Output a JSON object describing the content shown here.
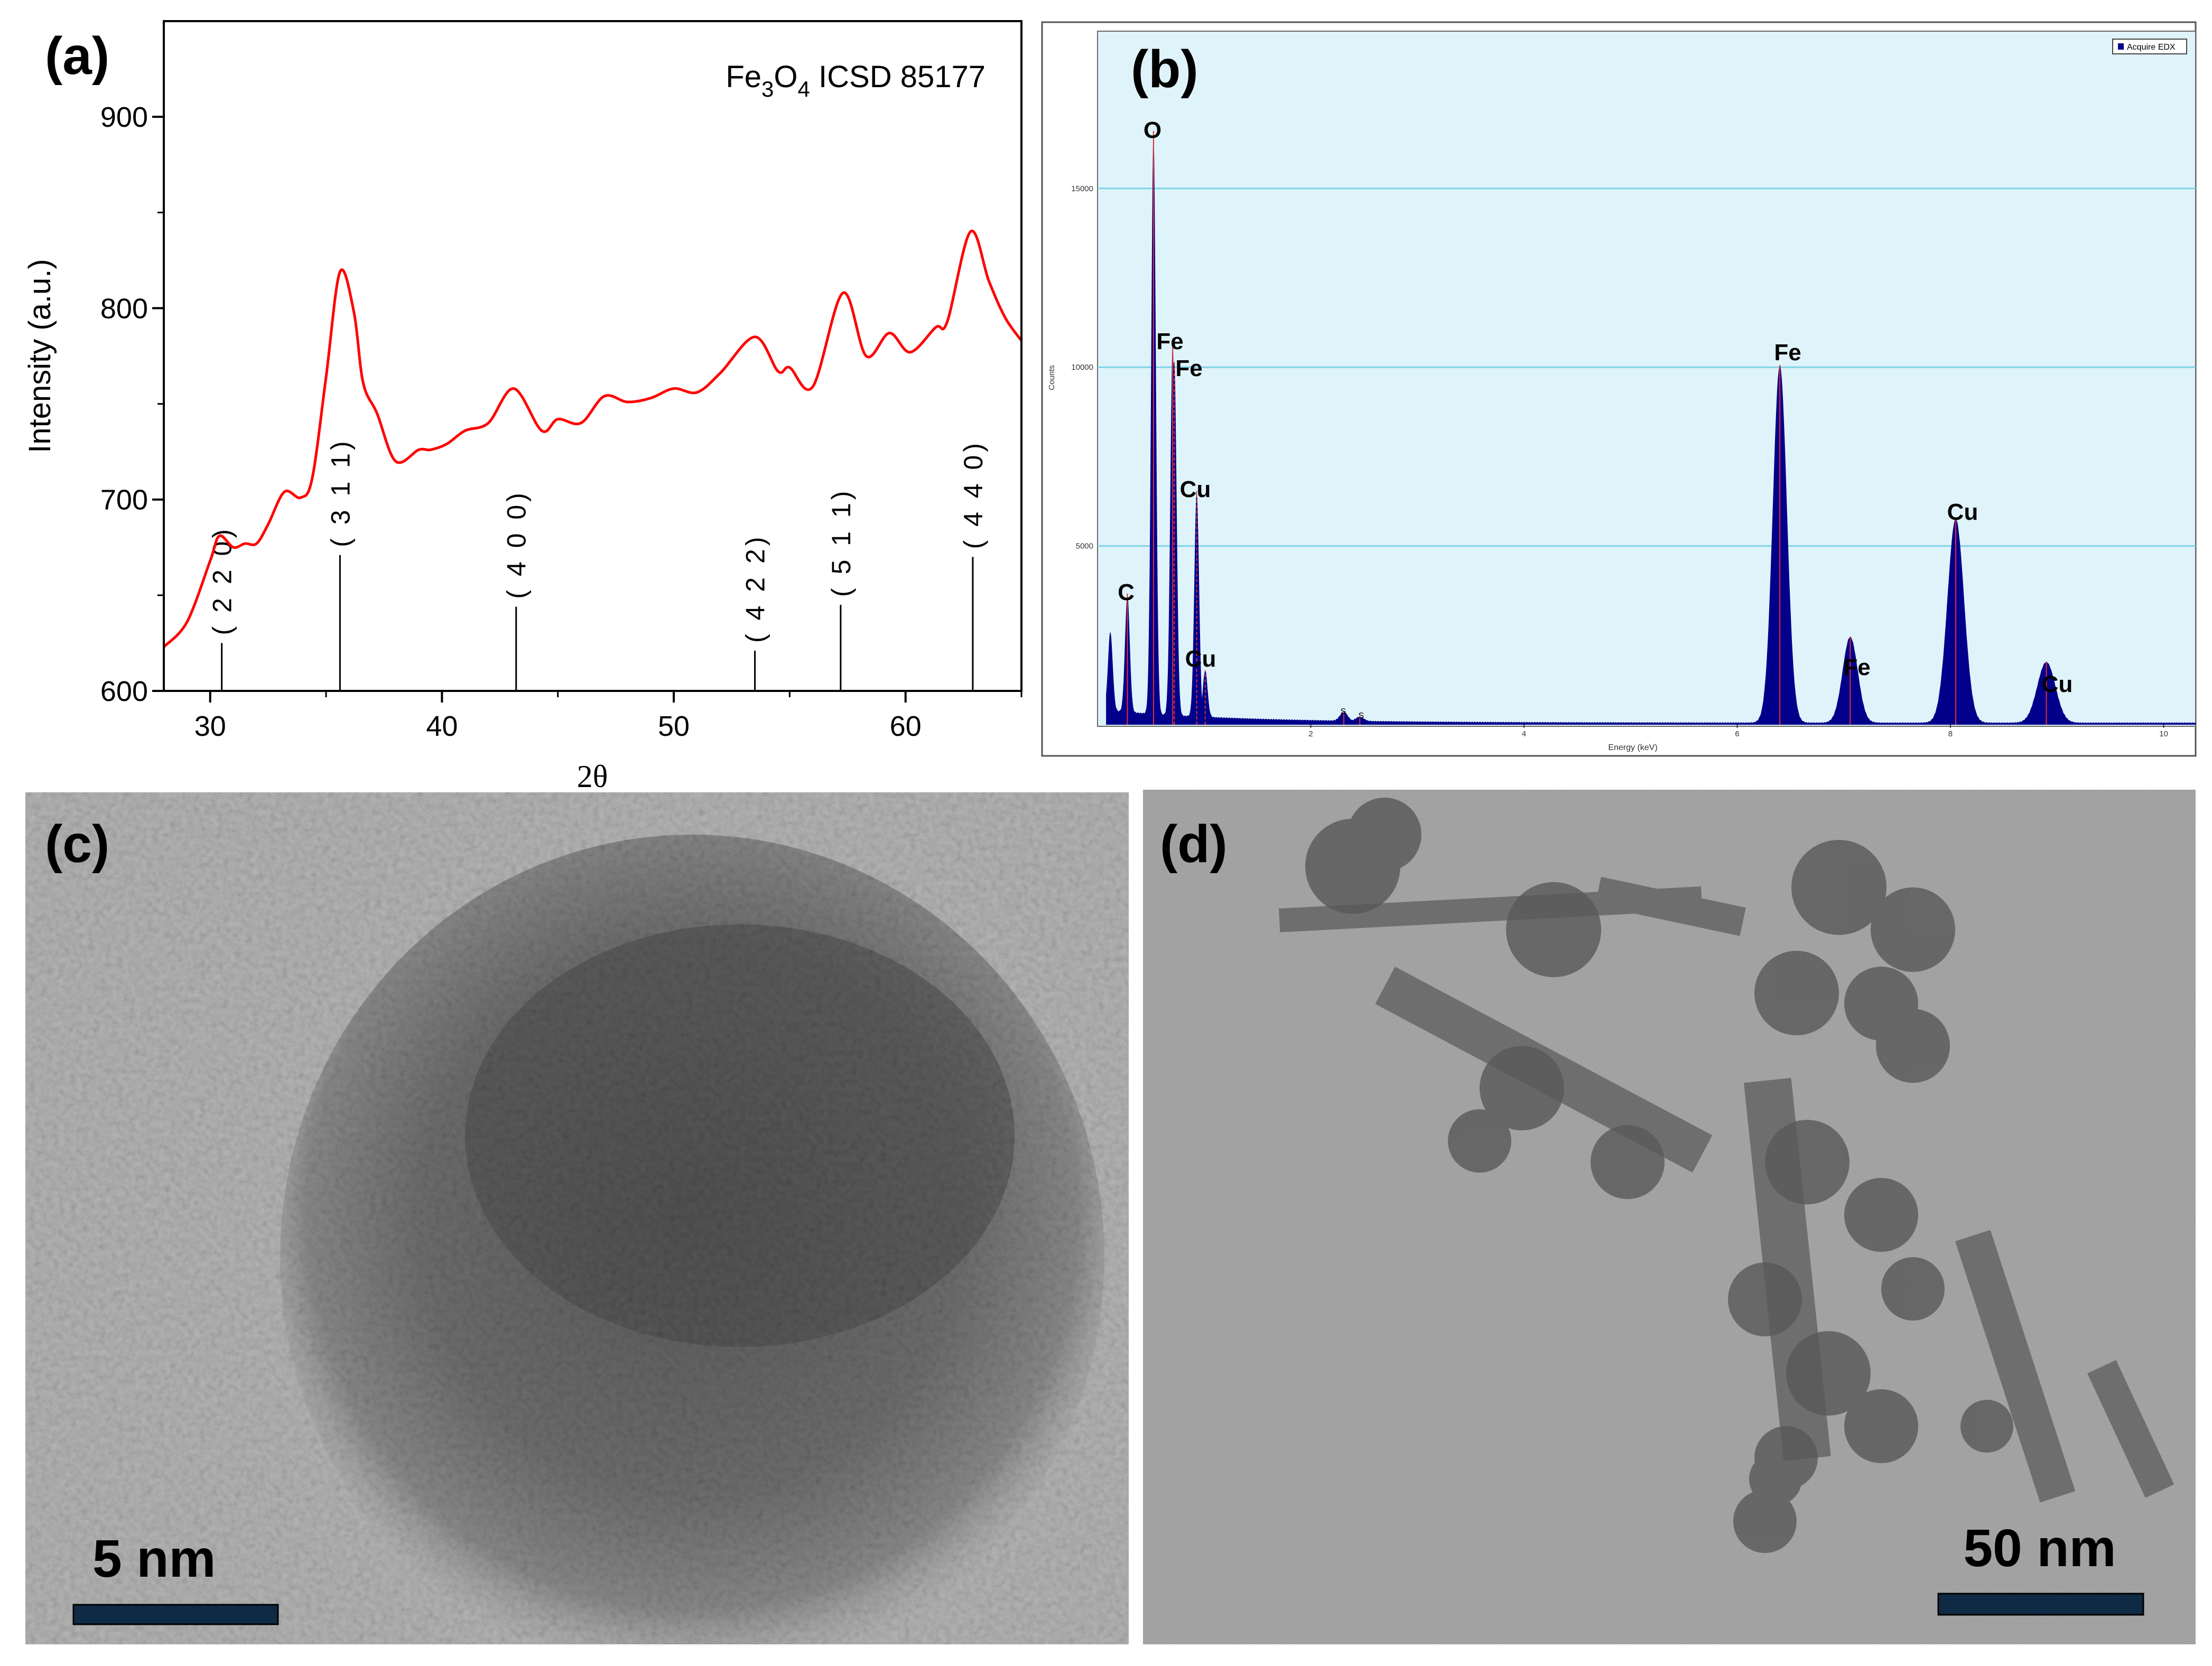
{
  "panels": {
    "a": {
      "label": "(a)"
    },
    "b": {
      "label": "(b)"
    },
    "c": {
      "label": "(c)",
      "scale_bar": "5 nm"
    },
    "d": {
      "label": "(d)",
      "scale_bar": "50 nm"
    }
  },
  "colors": {
    "xrd_line": "#ff0000",
    "edx_fill": "#00008b",
    "edx_bg": "#dff3fb",
    "edx_grid": "#7fd3e6",
    "scale_bar": "#0f2a44"
  },
  "chart_data": [
    {
      "type": "line",
      "xlabel": "2θ",
      "ylabel": "Intensity (a.u.)",
      "xlim": [
        28,
        65
      ],
      "ylim": [
        600,
        950
      ],
      "xticks": [
        30,
        40,
        50,
        60
      ],
      "yticks": [
        600,
        700,
        800,
        900
      ],
      "grid": false,
      "annotation": {
        "formula_parts": [
          "Fe",
          "3",
          "O",
          "4"
        ],
        "label": "ICSD 85177"
      },
      "x": [
        28,
        29,
        30,
        30.4,
        31,
        31.5,
        32,
        32.5,
        33.2,
        33.9,
        34.4,
        35,
        35.6,
        36.2,
        36.6,
        37.2,
        38,
        39,
        39.5,
        40.2,
        41,
        42,
        43.1,
        44.3,
        45,
        46,
        47,
        48,
        49,
        50,
        51,
        52,
        53.5,
        54.5,
        55,
        56,
        57.3,
        58.3,
        59.3,
        60.2,
        61.3,
        61.8,
        62.8,
        63.6,
        64.3,
        65
      ],
      "y": [
        623,
        636,
        668,
        681,
        675,
        677,
        677,
        687,
        704,
        701,
        711,
        764,
        819,
        798,
        761,
        745,
        720,
        726,
        726,
        729,
        736,
        740,
        758,
        736,
        742,
        740,
        754,
        751,
        753,
        758,
        756,
        766,
        785,
        767,
        769,
        759,
        808,
        775,
        787,
        777,
        790,
        793,
        840,
        814,
        795,
        783
      ],
      "reference_lines": [
        {
          "hkl": "( 2 2 0)",
          "x": 30.5,
          "top": 625
        },
        {
          "hkl": "( 3 1 1)",
          "x": 35.6,
          "top": 671
        },
        {
          "hkl": "( 4 0 0)",
          "x": 43.2,
          "top": 644
        },
        {
          "hkl": "( 4 2 2)",
          "x": 53.5,
          "top": 621
        },
        {
          "hkl": "( 5 1 1)",
          "x": 57.2,
          "top": 645
        },
        {
          "hkl": "( 4 4 0)",
          "x": 62.9,
          "top": 670
        }
      ]
    },
    {
      "type": "area",
      "xlabel": "Energy (keV)",
      "ylabel": "Counts",
      "xlim": [
        0,
        10.3
      ],
      "ylim": [
        0,
        19400
      ],
      "xticks": [
        2,
        4,
        6,
        8,
        10
      ],
      "yticks": [
        5000,
        10000,
        15000
      ],
      "grid": true,
      "legend": {
        "label": "Acquire EDX",
        "position": "top-right"
      },
      "peaks": [
        {
          "element": "",
          "energy": 0.12,
          "counts": 2200
        },
        {
          "element": "C",
          "energy": 0.28,
          "counts": 3300
        },
        {
          "element": "O",
          "energy": 0.525,
          "counts": 16300
        },
        {
          "element": "Fe",
          "energy": 0.705,
          "counts": 10400
        },
        {
          "element": "Fe",
          "energy": 0.72,
          "counts": 9900
        },
        {
          "element": "Cu",
          "energy": 0.93,
          "counts": 6300
        },
        {
          "element": "Cu",
          "energy": 1.01,
          "counts": 1300
        },
        {
          "element": "S",
          "energy": 2.31,
          "counts": 250
        },
        {
          "element": "S",
          "energy": 2.46,
          "counts": 120
        },
        {
          "element": "Fe",
          "energy": 6.4,
          "counts": 10000
        },
        {
          "element": "Fe",
          "energy": 7.06,
          "counts": 2400
        },
        {
          "element": "Cu",
          "energy": 8.05,
          "counts": 5700
        },
        {
          "element": "Cu",
          "energy": 8.9,
          "counts": 1700
        }
      ]
    }
  ]
}
